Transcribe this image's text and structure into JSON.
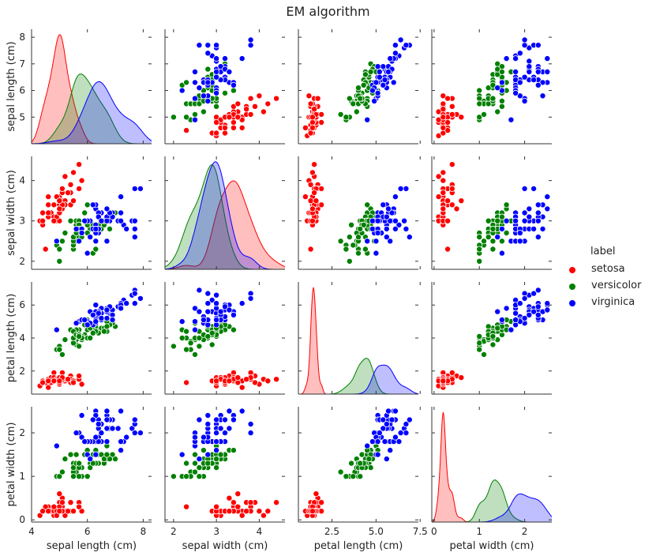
{
  "title": "EM algorithm",
  "legend": {
    "title": "label",
    "items": [
      {
        "name": "setosa",
        "color": "#ff0000"
      },
      {
        "name": "versicolor",
        "color": "#008000"
      },
      {
        "name": "virginica",
        "color": "#0000ff"
      }
    ]
  },
  "chart_data": {
    "type": "pairplot",
    "variables": [
      "sepal length (cm)",
      "sepal width (cm)",
      "petal length (cm)",
      "petal width (cm)"
    ],
    "limits": [
      [
        4.0,
        8.3
      ],
      [
        1.8,
        4.6
      ],
      [
        0.6,
        7.4
      ],
      [
        -0.05,
        2.6
      ]
    ],
    "ticks": [
      [
        4,
        6,
        8
      ],
      [
        2,
        3,
        4
      ],
      [
        2.5,
        5.0,
        7.5
      ],
      [
        0,
        1,
        2
      ]
    ],
    "row_ticks": [
      [
        5,
        6,
        7,
        8
      ],
      [
        2,
        3,
        4
      ],
      [
        2,
        4,
        6
      ],
      [
        0,
        1,
        2
      ]
    ],
    "row_tick_labels": [
      [
        "5",
        "6",
        "7",
        "8"
      ],
      [
        "2",
        "3",
        "4"
      ],
      [
        "2",
        "4",
        "6"
      ],
      [
        "0",
        "1",
        "2"
      ]
    ],
    "col_tick_labels": [
      [
        "4",
        "6",
        "8"
      ],
      [
        "2",
        "3",
        "4"
      ],
      [
        "2.5",
        "5.0",
        "7.5"
      ],
      [
        "0",
        "1",
        "2"
      ]
    ],
    "diagonal": "kde",
    "offdiagonal": "scatter",
    "grid": false,
    "legend_position": "right",
    "series": [
      {
        "name": "setosa",
        "color": "#ff0000",
        "points": [
          [
            5.1,
            3.5,
            1.4,
            0.2
          ],
          [
            4.9,
            3.0,
            1.4,
            0.2
          ],
          [
            4.7,
            3.2,
            1.3,
            0.2
          ],
          [
            4.6,
            3.1,
            1.5,
            0.2
          ],
          [
            5.0,
            3.6,
            1.4,
            0.2
          ],
          [
            5.4,
            3.9,
            1.7,
            0.4
          ],
          [
            4.6,
            3.4,
            1.4,
            0.3
          ],
          [
            5.0,
            3.4,
            1.5,
            0.2
          ],
          [
            4.4,
            2.9,
            1.4,
            0.2
          ],
          [
            4.9,
            3.1,
            1.5,
            0.1
          ],
          [
            5.4,
            3.7,
            1.5,
            0.2
          ],
          [
            4.8,
            3.4,
            1.6,
            0.2
          ],
          [
            4.8,
            3.0,
            1.4,
            0.1
          ],
          [
            4.3,
            3.0,
            1.1,
            0.1
          ],
          [
            5.8,
            4.0,
            1.2,
            0.2
          ],
          [
            5.7,
            4.4,
            1.5,
            0.4
          ],
          [
            5.4,
            3.9,
            1.3,
            0.4
          ],
          [
            5.1,
            3.5,
            1.4,
            0.3
          ],
          [
            5.7,
            3.8,
            1.7,
            0.3
          ],
          [
            5.1,
            3.8,
            1.5,
            0.3
          ],
          [
            5.4,
            3.4,
            1.7,
            0.2
          ],
          [
            5.1,
            3.7,
            1.5,
            0.4
          ],
          [
            4.6,
            3.6,
            1.0,
            0.2
          ],
          [
            5.1,
            3.3,
            1.7,
            0.5
          ],
          [
            4.8,
            3.4,
            1.9,
            0.2
          ],
          [
            5.0,
            3.0,
            1.6,
            0.2
          ],
          [
            5.0,
            3.4,
            1.6,
            0.4
          ],
          [
            5.2,
            3.5,
            1.5,
            0.2
          ],
          [
            5.2,
            3.4,
            1.4,
            0.2
          ],
          [
            4.7,
            3.2,
            1.6,
            0.2
          ],
          [
            4.8,
            3.1,
            1.6,
            0.2
          ],
          [
            5.4,
            3.4,
            1.5,
            0.4
          ],
          [
            5.2,
            4.1,
            1.5,
            0.1
          ],
          [
            5.5,
            4.2,
            1.4,
            0.2
          ],
          [
            4.9,
            3.1,
            1.5,
            0.2
          ],
          [
            5.0,
            3.2,
            1.2,
            0.2
          ],
          [
            5.5,
            3.5,
            1.3,
            0.2
          ],
          [
            4.9,
            3.6,
            1.4,
            0.1
          ],
          [
            4.4,
            3.0,
            1.3,
            0.2
          ],
          [
            5.1,
            3.4,
            1.5,
            0.2
          ],
          [
            5.0,
            3.5,
            1.3,
            0.3
          ],
          [
            4.5,
            2.3,
            1.3,
            0.3
          ],
          [
            4.4,
            3.2,
            1.3,
            0.2
          ],
          [
            5.0,
            3.5,
            1.6,
            0.6
          ],
          [
            5.1,
            3.8,
            1.9,
            0.4
          ],
          [
            4.8,
            3.0,
            1.4,
            0.3
          ],
          [
            5.1,
            3.8,
            1.6,
            0.2
          ],
          [
            4.6,
            3.2,
            1.4,
            0.2
          ],
          [
            5.3,
            3.7,
            1.5,
            0.2
          ],
          [
            5.0,
            3.3,
            1.4,
            0.2
          ]
        ]
      },
      {
        "name": "versicolor",
        "color": "#008000",
        "points": [
          [
            7.0,
            3.2,
            4.7,
            1.4
          ],
          [
            6.4,
            3.2,
            4.5,
            1.5
          ],
          [
            6.9,
            3.1,
            4.9,
            1.5
          ],
          [
            5.5,
            2.3,
            4.0,
            1.3
          ],
          [
            6.5,
            2.8,
            4.6,
            1.5
          ],
          [
            5.7,
            2.8,
            4.5,
            1.3
          ],
          [
            6.3,
            3.3,
            4.7,
            1.6
          ],
          [
            4.9,
            2.4,
            3.3,
            1.0
          ],
          [
            6.6,
            2.9,
            4.6,
            1.3
          ],
          [
            5.2,
            2.7,
            3.9,
            1.4
          ],
          [
            5.0,
            2.0,
            3.5,
            1.0
          ],
          [
            5.9,
            3.0,
            4.2,
            1.5
          ],
          [
            6.0,
            2.2,
            4.0,
            1.0
          ],
          [
            6.1,
            2.9,
            4.7,
            1.4
          ],
          [
            5.6,
            2.9,
            3.6,
            1.3
          ],
          [
            6.7,
            3.1,
            4.4,
            1.4
          ],
          [
            5.6,
            3.0,
            4.5,
            1.5
          ],
          [
            5.8,
            2.7,
            4.1,
            1.0
          ],
          [
            6.2,
            2.2,
            4.5,
            1.5
          ],
          [
            5.6,
            2.5,
            3.9,
            1.1
          ],
          [
            5.9,
            3.2,
            4.8,
            1.8
          ],
          [
            6.1,
            2.8,
            4.0,
            1.3
          ],
          [
            6.3,
            2.5,
            4.9,
            1.5
          ],
          [
            6.1,
            2.8,
            4.7,
            1.2
          ],
          [
            6.4,
            2.9,
            4.3,
            1.3
          ],
          [
            6.6,
            3.0,
            4.4,
            1.4
          ],
          [
            6.8,
            2.8,
            4.8,
            1.4
          ],
          [
            6.7,
            3.0,
            5.0,
            1.7
          ],
          [
            6.0,
            2.9,
            4.5,
            1.5
          ],
          [
            5.7,
            2.6,
            3.5,
            1.0
          ],
          [
            5.5,
            2.4,
            3.8,
            1.1
          ],
          [
            5.5,
            2.4,
            3.7,
            1.0
          ],
          [
            5.8,
            2.7,
            3.9,
            1.2
          ],
          [
            6.0,
            2.7,
            5.1,
            1.6
          ],
          [
            5.4,
            3.0,
            4.5,
            1.5
          ],
          [
            6.0,
            3.4,
            4.5,
            1.6
          ],
          [
            6.7,
            3.1,
            4.7,
            1.5
          ],
          [
            6.3,
            2.3,
            4.4,
            1.3
          ],
          [
            5.6,
            3.0,
            4.1,
            1.3
          ],
          [
            5.5,
            2.5,
            4.0,
            1.3
          ],
          [
            5.5,
            2.6,
            4.4,
            1.2
          ],
          [
            6.1,
            3.0,
            4.6,
            1.4
          ],
          [
            5.8,
            2.6,
            4.0,
            1.2
          ],
          [
            5.0,
            2.3,
            3.3,
            1.0
          ],
          [
            5.6,
            2.7,
            4.2,
            1.3
          ],
          [
            5.7,
            3.0,
            4.2,
            1.2
          ],
          [
            5.7,
            2.9,
            4.2,
            1.3
          ],
          [
            6.2,
            2.9,
            4.3,
            1.3
          ],
          [
            5.1,
            2.5,
            3.0,
            1.1
          ],
          [
            5.7,
            2.8,
            4.1,
            1.3
          ]
        ]
      },
      {
        "name": "virginica",
        "color": "#0000ff",
        "points": [
          [
            6.3,
            3.3,
            6.0,
            2.5
          ],
          [
            5.8,
            2.7,
            5.1,
            1.9
          ],
          [
            7.1,
            3.0,
            5.9,
            2.1
          ],
          [
            6.3,
            2.9,
            5.6,
            1.8
          ],
          [
            6.5,
            3.0,
            5.8,
            2.2
          ],
          [
            7.6,
            3.0,
            6.6,
            2.1
          ],
          [
            4.9,
            2.5,
            4.5,
            1.7
          ],
          [
            7.3,
            2.9,
            6.3,
            1.8
          ],
          [
            6.7,
            2.5,
            5.8,
            1.8
          ],
          [
            7.2,
            3.6,
            6.1,
            2.5
          ],
          [
            6.5,
            3.2,
            5.1,
            2.0
          ],
          [
            6.4,
            2.7,
            5.3,
            1.9
          ],
          [
            6.8,
            3.0,
            5.5,
            2.1
          ],
          [
            5.7,
            2.5,
            5.0,
            2.0
          ],
          [
            5.8,
            2.8,
            5.1,
            2.4
          ],
          [
            6.4,
            3.2,
            5.3,
            2.3
          ],
          [
            6.5,
            3.0,
            5.5,
            1.8
          ],
          [
            7.7,
            3.8,
            6.7,
            2.2
          ],
          [
            7.7,
            2.6,
            6.9,
            2.3
          ],
          [
            6.0,
            2.2,
            5.0,
            1.5
          ],
          [
            6.9,
            3.2,
            5.7,
            2.3
          ],
          [
            5.6,
            2.8,
            4.9,
            2.0
          ],
          [
            7.7,
            2.8,
            6.7,
            2.0
          ],
          [
            6.3,
            2.7,
            4.9,
            1.8
          ],
          [
            6.7,
            3.3,
            5.7,
            2.1
          ],
          [
            7.2,
            3.2,
            6.0,
            1.8
          ],
          [
            6.2,
            2.8,
            4.8,
            1.8
          ],
          [
            6.1,
            3.0,
            4.9,
            1.8
          ],
          [
            6.4,
            2.8,
            5.6,
            2.1
          ],
          [
            7.2,
            3.0,
            5.8,
            1.6
          ],
          [
            7.4,
            2.8,
            6.1,
            1.9
          ],
          [
            7.9,
            3.8,
            6.4,
            2.0
          ],
          [
            6.4,
            2.8,
            5.6,
            2.2
          ],
          [
            6.3,
            2.8,
            5.1,
            1.5
          ],
          [
            6.1,
            2.6,
            5.6,
            1.4
          ],
          [
            7.7,
            3.0,
            6.1,
            2.3
          ],
          [
            6.3,
            3.4,
            5.6,
            2.4
          ],
          [
            6.4,
            3.1,
            5.5,
            1.8
          ],
          [
            6.0,
            3.0,
            4.8,
            1.8
          ],
          [
            6.9,
            3.1,
            5.4,
            2.1
          ],
          [
            6.7,
            3.1,
            5.6,
            2.4
          ],
          [
            6.9,
            3.1,
            5.1,
            2.3
          ],
          [
            5.8,
            2.7,
            5.1,
            1.9
          ],
          [
            6.8,
            3.2,
            5.9,
            2.3
          ],
          [
            6.7,
            3.3,
            5.7,
            2.5
          ],
          [
            6.7,
            3.0,
            5.2,
            2.3
          ],
          [
            6.3,
            2.5,
            5.0,
            1.9
          ],
          [
            6.5,
            3.0,
            5.2,
            2.0
          ],
          [
            6.2,
            3.4,
            5.4,
            2.3
          ],
          [
            5.9,
            3.0,
            5.1,
            1.8
          ]
        ]
      }
    ]
  }
}
